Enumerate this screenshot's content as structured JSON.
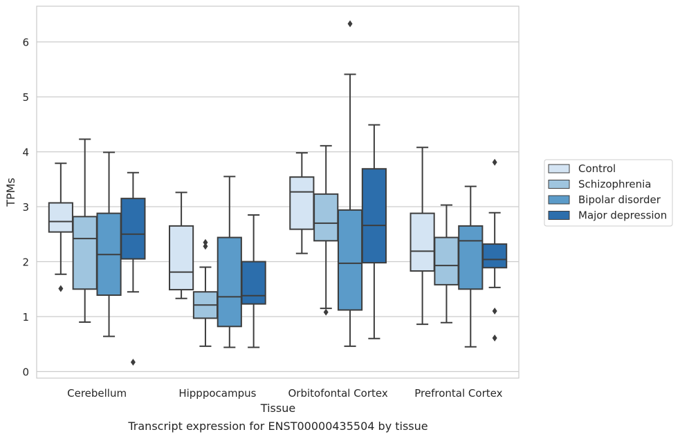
{
  "chart_data": {
    "type": "boxplot",
    "caption": "Transcript expression for ENST00000435504 by tissue",
    "xlabel": "Tissue",
    "ylabel": "TPMs",
    "ylim": [
      -0.12,
      6.65
    ],
    "yticks": [
      0,
      1,
      2,
      3,
      4,
      5,
      6
    ],
    "categories": [
      "Cerebellum",
      "Hipppocampus",
      "Orbitofontal Cortex",
      "Prefrontal Cortex"
    ],
    "grid": "horizontal",
    "legend_position": "right",
    "series": [
      {
        "name": "Control",
        "color": "#d4e4f3",
        "boxes": [
          {
            "whisker_low": 1.77,
            "q1": 2.54,
            "median": 2.73,
            "q3": 3.07,
            "whisker_high": 3.79,
            "outliers": [
              1.51
            ]
          },
          {
            "whisker_low": 1.33,
            "q1": 1.49,
            "median": 1.81,
            "q3": 2.65,
            "whisker_high": 3.26,
            "outliers": []
          },
          {
            "whisker_low": 2.15,
            "q1": 2.59,
            "median": 3.27,
            "q3": 3.54,
            "whisker_high": 3.98,
            "outliers": []
          },
          {
            "whisker_low": 0.86,
            "q1": 1.83,
            "median": 2.19,
            "q3": 2.88,
            "whisker_high": 4.08,
            "outliers": []
          }
        ]
      },
      {
        "name": "Schizophrenia",
        "color": "#9fc5df",
        "boxes": [
          {
            "whisker_low": 0.9,
            "q1": 1.5,
            "median": 2.42,
            "q3": 2.82,
            "whisker_high": 4.23,
            "outliers": []
          },
          {
            "whisker_low": 0.46,
            "q1": 0.97,
            "median": 1.21,
            "q3": 1.45,
            "whisker_high": 1.9,
            "outliers": [
              2.35,
              2.28
            ]
          },
          {
            "whisker_low": 1.15,
            "q1": 2.38,
            "median": 2.7,
            "q3": 3.23,
            "whisker_high": 4.11,
            "outliers": [
              1.08
            ]
          },
          {
            "whisker_low": 0.89,
            "q1": 1.58,
            "median": 1.93,
            "q3": 2.44,
            "whisker_high": 3.03,
            "outliers": []
          }
        ]
      },
      {
        "name": "Bipolar disorder",
        "color": "#5b9bc9",
        "boxes": [
          {
            "whisker_low": 0.64,
            "q1": 1.39,
            "median": 2.13,
            "q3": 2.88,
            "whisker_high": 3.99,
            "outliers": []
          },
          {
            "whisker_low": 0.44,
            "q1": 0.82,
            "median": 1.36,
            "q3": 2.44,
            "whisker_high": 3.55,
            "outliers": []
          },
          {
            "whisker_low": 0.46,
            "q1": 1.12,
            "median": 1.97,
            "q3": 2.94,
            "whisker_high": 5.41,
            "outliers": [
              6.33
            ]
          },
          {
            "whisker_low": 0.45,
            "q1": 1.5,
            "median": 2.38,
            "q3": 2.65,
            "whisker_high": 3.37,
            "outliers": []
          }
        ]
      },
      {
        "name": "Major depression",
        "color": "#2c6eac",
        "boxes": [
          {
            "whisker_low": 1.45,
            "q1": 2.05,
            "median": 2.5,
            "q3": 3.15,
            "whisker_high": 3.62,
            "outliers": [
              0.17
            ]
          },
          {
            "whisker_low": 0.44,
            "q1": 1.23,
            "median": 1.38,
            "q3": 2.0,
            "whisker_high": 2.85,
            "outliers": []
          },
          {
            "whisker_low": 0.6,
            "q1": 1.98,
            "median": 2.66,
            "q3": 3.69,
            "whisker_high": 4.49,
            "outliers": []
          },
          {
            "whisker_low": 1.53,
            "q1": 1.89,
            "median": 2.04,
            "q3": 2.32,
            "whisker_high": 2.89,
            "outliers": [
              3.81,
              1.1,
              0.61
            ]
          }
        ]
      }
    ]
  }
}
